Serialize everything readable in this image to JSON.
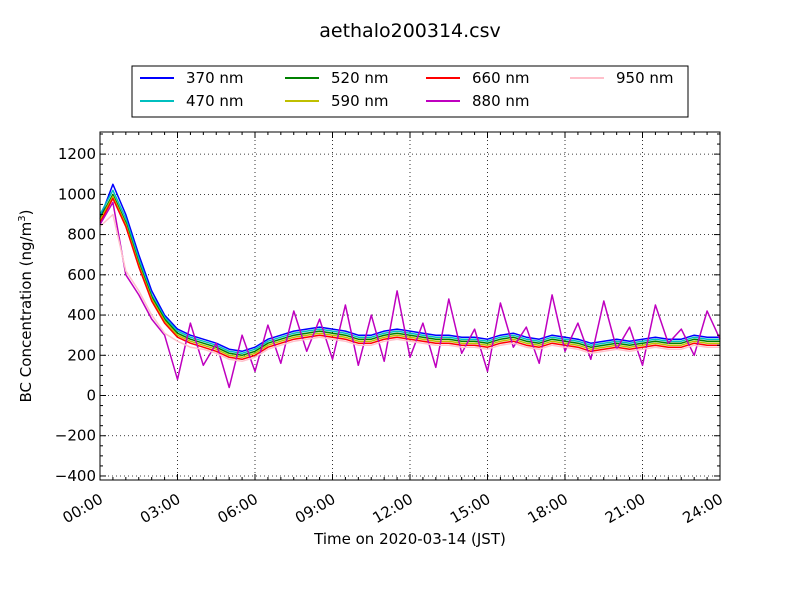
{
  "chart_data": {
    "type": "line",
    "title": "aethalo200314.csv",
    "xlabel": "Time on 2020-03-14 (JST)",
    "ylabel_main": "BC Concentration (ng/m",
    "ylabel_sup": "3",
    "ylabel_end": ")",
    "xlim": [
      0,
      24
    ],
    "ylim": [
      -420,
      1310
    ],
    "x_ticks": [
      {
        "value": 0,
        "label": "00:00"
      },
      {
        "value": 3,
        "label": "03:00"
      },
      {
        "value": 6,
        "label": "06:00"
      },
      {
        "value": 9,
        "label": "09:00"
      },
      {
        "value": 12,
        "label": "12:00"
      },
      {
        "value": 15,
        "label": "15:00"
      },
      {
        "value": 18,
        "label": "18:00"
      },
      {
        "value": 21,
        "label": "21:00"
      },
      {
        "value": 24,
        "label": "24:00"
      }
    ],
    "y_ticks": [
      {
        "value": 1200,
        "label": "1200"
      },
      {
        "value": 1000,
        "label": "1000"
      },
      {
        "value": 800,
        "label": "800"
      },
      {
        "value": 600,
        "label": "600"
      },
      {
        "value": 400,
        "label": "400"
      },
      {
        "value": 200,
        "label": "200"
      },
      {
        "value": 0,
        "label": "0"
      },
      {
        "value": -200,
        "label": "−200"
      },
      {
        "value": -400,
        "label": "−400"
      }
    ],
    "grid": true,
    "legend_position": "top-center",
    "x_hours": [
      0,
      0.5,
      1,
      1.5,
      2,
      2.5,
      3,
      3.5,
      4,
      4.5,
      5,
      5.5,
      6,
      6.5,
      7,
      7.5,
      8,
      8.5,
      9,
      9.5,
      10,
      10.5,
      11,
      11.5,
      12,
      12.5,
      13,
      13.5,
      14,
      14.5,
      15,
      15.5,
      16,
      16.5,
      17,
      17.5,
      18,
      18.5,
      19,
      19.5,
      20,
      20.5,
      21,
      21.5,
      22,
      22.5,
      23,
      23.5,
      24
    ],
    "series": [
      {
        "name": "370 nm",
        "color": "#0000ff",
        "values": [
          880,
          1050,
          900,
          700,
          520,
          400,
          330,
          300,
          280,
          260,
          230,
          220,
          240,
          280,
          300,
          320,
          330,
          340,
          330,
          320,
          300,
          300,
          320,
          330,
          320,
          310,
          300,
          300,
          290,
          290,
          280,
          300,
          310,
          290,
          280,
          300,
          290,
          280,
          260,
          270,
          280,
          270,
          280,
          290,
          280,
          280,
          300,
          290,
          290
        ]
      },
      {
        "name": "470 nm",
        "color": "#00bfbf",
        "values": [
          900,
          1020,
          880,
          680,
          500,
          390,
          320,
          290,
          270,
          250,
          220,
          210,
          230,
          270,
          290,
          310,
          320,
          330,
          320,
          310,
          290,
          290,
          310,
          320,
          310,
          300,
          290,
          290,
          280,
          280,
          270,
          290,
          300,
          280,
          270,
          290,
          280,
          270,
          250,
          260,
          270,
          260,
          270,
          280,
          270,
          270,
          290,
          280,
          280
        ]
      },
      {
        "name": "520 nm",
        "color": "#008000",
        "values": [
          880,
          1000,
          860,
          660,
          490,
          380,
          310,
          280,
          260,
          240,
          210,
          200,
          220,
          260,
          280,
          300,
          310,
          320,
          310,
          300,
          280,
          280,
          300,
          310,
          300,
          290,
          280,
          280,
          270,
          270,
          260,
          280,
          290,
          270,
          260,
          280,
          270,
          260,
          240,
          250,
          260,
          250,
          260,
          270,
          260,
          260,
          280,
          270,
          270
        ]
      },
      {
        "name": "590 nm",
        "color": "#bfbf00",
        "values": [
          870,
          990,
          850,
          650,
          480,
          370,
          300,
          270,
          250,
          230,
          200,
          190,
          210,
          250,
          270,
          290,
          300,
          310,
          300,
          290,
          270,
          270,
          290,
          300,
          290,
          280,
          270,
          270,
          260,
          260,
          250,
          270,
          280,
          260,
          250,
          270,
          260,
          250,
          230,
          240,
          250,
          240,
          250,
          260,
          250,
          250,
          270,
          260,
          260
        ]
      },
      {
        "name": "660 nm",
        "color": "#ff0000",
        "values": [
          860,
          980,
          840,
          640,
          470,
          360,
          290,
          260,
          240,
          220,
          190,
          180,
          200,
          240,
          260,
          280,
          290,
          300,
          290,
          280,
          260,
          260,
          280,
          290,
          280,
          270,
          260,
          260,
          250,
          250,
          240,
          260,
          270,
          250,
          240,
          260,
          250,
          240,
          220,
          230,
          240,
          230,
          240,
          250,
          240,
          240,
          260,
          250,
          250
        ]
      },
      {
        "name": "880 nm",
        "color": "#bf00bf",
        "values": [
          850,
          960,
          600,
          500,
          380,
          300,
          80,
          360,
          150,
          260,
          40,
          300,
          120,
          350,
          160,
          420,
          220,
          380,
          180,
          450,
          150,
          400,
          170,
          520,
          190,
          360,
          140,
          480,
          210,
          330,
          120,
          460,
          240,
          340,
          160,
          500,
          220,
          360,
          180,
          470,
          230,
          340,
          150,
          450,
          260,
          330,
          200,
          420,
          280
        ]
      },
      {
        "name": "950 nm",
        "color": "#ffc0cb",
        "values": [
          840,
          900,
          620,
          520,
          400,
          310,
          270,
          240,
          230,
          210,
          180,
          170,
          190,
          230,
          250,
          270,
          280,
          290,
          280,
          270,
          250,
          250,
          270,
          280,
          270,
          260,
          250,
          250,
          240,
          240,
          230,
          250,
          260,
          240,
          230,
          250,
          240,
          230,
          210,
          220,
          230,
          220,
          230,
          240,
          230,
          230,
          250,
          240,
          240
        ]
      }
    ]
  }
}
